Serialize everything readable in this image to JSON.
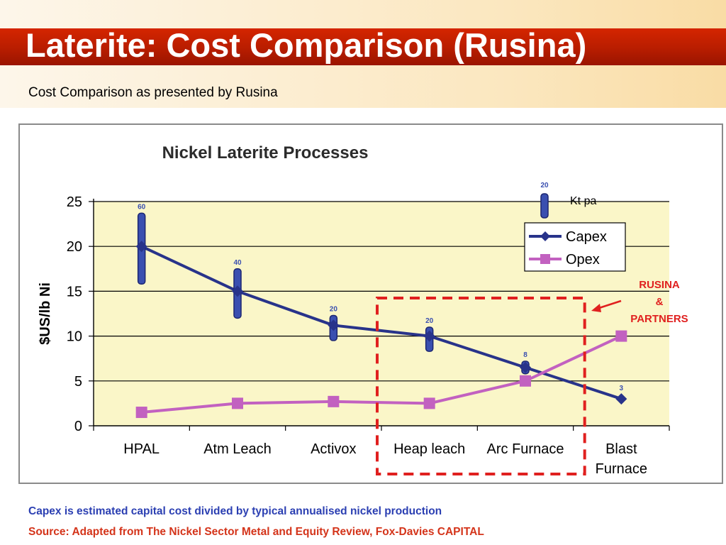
{
  "slide": {
    "title": "Laterite: Cost Comparison (Rusina)",
    "subtitle": "Cost Comparison as presented by Rusina",
    "note_capex": "Capex is estimated capital cost divided by typical annualised nickel production",
    "note_source": "Source: Adapted from The Nickel Sector Metal and Equity Review, Fox-Davies CAPITAL"
  },
  "colors": {
    "title_bar": "#c21f00",
    "capex": "#28338a",
    "opex": "#c261c0",
    "capacity_bar": "#3a4fb0",
    "plot_bg": "#faf6c8",
    "highlight": "#e0201f",
    "note_blue": "#2b3fb2",
    "note_red": "#d4341a"
  },
  "chart_data": {
    "type": "line",
    "title": "Nickel Laterite Processes",
    "xlabel": "",
    "ylabel": "$US/lb Ni",
    "ylim": [
      0,
      25
    ],
    "yticks": [
      0,
      5,
      10,
      15,
      20,
      25
    ],
    "grid": true,
    "legend_position": "top-right",
    "categories": [
      "HPAL",
      "Atm Leach",
      "Activox",
      "Heap leach",
      "Arc Furnace",
      "Blast Furnace"
    ],
    "series": [
      {
        "name": "Capex",
        "values": [
          20,
          15,
          11.2,
          10,
          6.5,
          3
        ],
        "color": "#28338a",
        "marker": "diamond"
      },
      {
        "name": "Opex",
        "values": [
          1.5,
          2.5,
          2.7,
          2.5,
          5,
          10
        ],
        "color": "#c261c0",
        "marker": "square"
      }
    ],
    "capacity_bars": {
      "unit_label": "Kt pa",
      "legend_value": "20",
      "values": [
        "60",
        "40",
        "20",
        "20",
        "8",
        "3"
      ],
      "ranges": [
        [
          15.8,
          23.7
        ],
        [
          12,
          17.5
        ],
        [
          9.5,
          12.3
        ],
        [
          8.3,
          11
        ],
        [
          5.8,
          7.2
        ],
        null
      ]
    },
    "highlight": {
      "label_lines": [
        "RUSINA",
        "&",
        "PARTNERS"
      ],
      "categories": [
        "Heap leach",
        "Arc Furnace"
      ],
      "style": "dashed box"
    }
  }
}
